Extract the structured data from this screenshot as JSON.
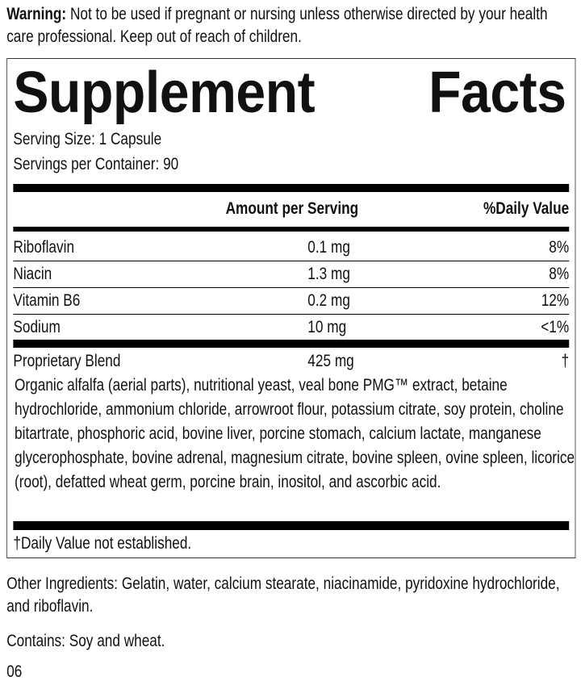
{
  "warning": {
    "label": "Warning:",
    "text": " Not to be used if pregnant or nursing unless otherwise directed by your health care professional. Keep out of reach of children."
  },
  "facts": {
    "title_word1": "Supplement",
    "title_word2": "Facts",
    "serving_size": "Serving Size: 1 Capsule",
    "servings_per_container": "Servings per Container: 90",
    "header_amount": "Amount per Serving",
    "header_dv": "%Daily Value",
    "nutrients": [
      {
        "name": "Riboflavin",
        "amount": "0.1 mg",
        "dv": "8%"
      },
      {
        "name": "Niacin",
        "amount": "1.3 mg",
        "dv": "8%"
      },
      {
        "name": "Vitamin B6",
        "amount": "0.2 mg",
        "dv": "12%"
      },
      {
        "name": "Sodium",
        "amount": "10 mg",
        "dv": "<1%"
      }
    ],
    "blend": {
      "name": "Proprietary Blend",
      "amount": "425 mg",
      "dv": "†",
      "ingredients": "Organic alfalfa (aerial parts), nutritional yeast, veal bone PMG™ extract, betaine hydrochloride, ammonium chloride, arrowroot flour, potassium citrate, soy protein, choline bitartrate, phosphoric acid, bovine liver, porcine stomach, calcium lactate, manganese glycerophosphate, bovine adrenal, magnesium citrate, bovine spleen, ovine spleen, licorice (root), defatted wheat germ, porcine brain, inositol, and ascorbic acid."
    },
    "footnote": "†Daily Value not established."
  },
  "other_ingredients": "Other Ingredients: Gelatin, water, calcium stearate, niacinamide, pyridoxine hydrochloride, and riboflavin.",
  "contains": "Contains: Soy and wheat.",
  "code": "06"
}
